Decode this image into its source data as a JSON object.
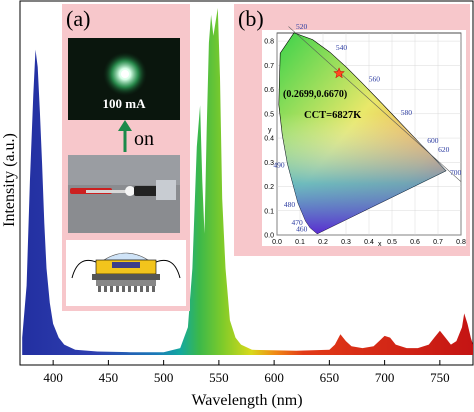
{
  "chart_data": {
    "type": "area",
    "xlabel": "Wavelength (nm)",
    "ylabel": "Intensity (a.u.)",
    "xlim": [
      370,
      780
    ],
    "xticks": [
      400,
      450,
      500,
      550,
      600,
      650,
      700,
      750
    ],
    "yticks_shown": false,
    "series": [
      {
        "values_note": "blue peak",
        "x": [
          372,
          376,
          379,
          382,
          384,
          386,
          388,
          390,
          392,
          394,
          397,
          400,
          405,
          410,
          420,
          440,
          470,
          500
        ],
        "y": [
          0.05,
          0.2,
          0.5,
          0.75,
          0.88,
          0.83,
          0.7,
          0.55,
          0.38,
          0.25,
          0.15,
          0.09,
          0.05,
          0.03,
          0.015,
          0.01,
          0.008,
          0.008
        ]
      },
      {
        "values_note": "green band",
        "x": [
          500,
          515,
          522,
          526,
          530,
          533,
          535,
          537,
          539,
          541,
          543,
          545,
          547,
          549,
          551,
          553,
          556,
          560,
          565,
          570,
          580
        ],
        "y": [
          0.008,
          0.02,
          0.08,
          0.25,
          0.6,
          0.72,
          0.5,
          0.35,
          0.65,
          0.9,
          0.98,
          0.92,
          0.96,
          1.0,
          0.8,
          0.45,
          0.25,
          0.1,
          0.05,
          0.03,
          0.015
        ]
      },
      {
        "values_note": "red lines",
        "x": [
          580,
          620,
          650,
          655,
          660,
          665,
          670,
          680,
          690,
          695,
          700,
          705,
          710,
          720,
          730,
          740,
          745,
          750,
          755,
          760,
          765,
          770,
          772,
          775,
          778,
          780
        ],
        "y": [
          0.015,
          0.012,
          0.015,
          0.03,
          0.06,
          0.04,
          0.025,
          0.02,
          0.025,
          0.04,
          0.055,
          0.05,
          0.03,
          0.02,
          0.02,
          0.03,
          0.05,
          0.07,
          0.05,
          0.03,
          0.04,
          0.08,
          0.12,
          0.09,
          0.05,
          0.03
        ]
      }
    ],
    "insets": {
      "a": {
        "label": "(a)",
        "current_label": "100 mA",
        "arrow_label": "on"
      },
      "b": {
        "label": "(b)",
        "coordinate_label": "(0.2699,0.6670)",
        "cct_label": "CCT=6827K",
        "point": {
          "x": 0.2699,
          "y": 0.667
        },
        "x_axis_label": "x",
        "y_axis_label": "y",
        "xticks": [
          "0.0",
          "0.1",
          "0.2",
          "0.3",
          "0.4",
          "0.5",
          "0.6",
          "0.7",
          "0.8"
        ],
        "yticks": [
          "0.0",
          "0.1",
          "0.2",
          "0.3",
          "0.4",
          "0.5",
          "0.6",
          "0.7",
          "0.8"
        ],
        "wavelength_labels": [
          "460",
          "470",
          "480",
          "490",
          "520",
          "540",
          "560",
          "580",
          "600",
          "620",
          "700"
        ]
      }
    }
  },
  "colors": {
    "inset_background": "#f7c7cb",
    "blue_peak": "#2b2fa8",
    "red_peak": "#cc1a1a",
    "marker": "#ff4a1f"
  }
}
